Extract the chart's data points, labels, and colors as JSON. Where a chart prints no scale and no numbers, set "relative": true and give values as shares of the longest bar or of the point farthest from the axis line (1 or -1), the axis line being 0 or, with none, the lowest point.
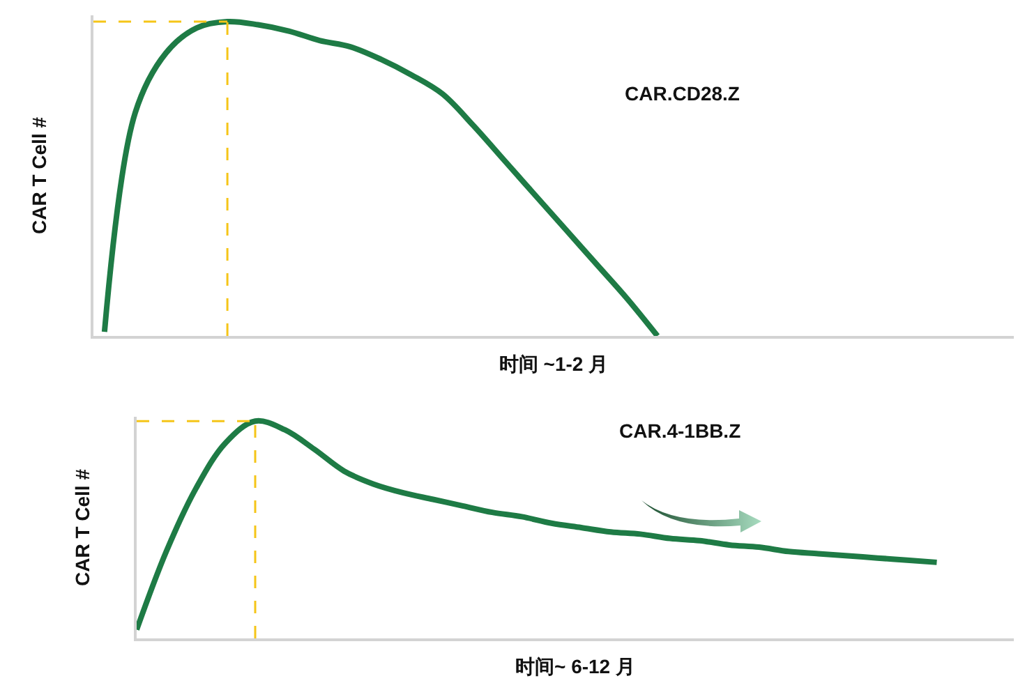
{
  "chart_data": [
    {
      "type": "line",
      "relative": true,
      "xlabel": "时间 ~1-2 月",
      "ylabel": "CAR T Cell #",
      "annotations": [
        "CAR.CD28.Z"
      ],
      "categories": [
        null,
        null,
        null,
        null,
        null,
        null,
        null,
        null,
        null,
        null,
        null,
        null,
        null,
        null,
        null,
        null,
        null,
        null,
        null,
        null,
        null,
        null,
        null,
        null,
        null,
        null,
        null,
        null,
        null,
        null
      ],
      "series": [
        {
          "color": "#1e7b45",
          "values": [
            0.013,
            0.71,
            0.9,
            0.98,
            1.0,
            0.99,
            0.97,
            0.94,
            0.92,
            0.88,
            0.83,
            0.77,
            0.67,
            0.56,
            0.45,
            0.34,
            0.23,
            0.12,
            0,
            null,
            null,
            null,
            null,
            null,
            null,
            null,
            null,
            null,
            null,
            null
          ]
        }
      ],
      "ref_lines": [
        {
          "axis": "y",
          "value": 1,
          "color": "#f5c518",
          "line_style": "dashed"
        }
      ],
      "grid": false
    },
    {
      "type": "line",
      "relative": true,
      "xlabel": "时间~ 6-12 月",
      "ylabel": "CAR T Cell #",
      "annotations": [
        "CAR.4-1BB.Z"
      ],
      "categories": [
        null,
        null,
        null,
        null,
        null,
        null,
        null,
        null,
        null,
        null,
        null,
        null,
        null,
        null,
        null,
        null,
        null,
        null,
        null,
        null,
        null,
        null,
        null,
        null,
        null,
        null,
        null,
        null,
        null,
        null
      ],
      "series": [
        {
          "color": "#1e7b45",
          "values": [
            0.04,
            0.4,
            0.69,
            0.9,
            1.0,
            0.96,
            0.87,
            0.77,
            0.71,
            0.67,
            0.64,
            0.61,
            0.58,
            0.56,
            0.53,
            0.51,
            0.49,
            0.48,
            0.46,
            0.45,
            0.43,
            0.42,
            0.4,
            0.39,
            0.38,
            0.37,
            0.36,
            0.35,
            null,
            null
          ]
        }
      ],
      "ref_lines": [
        {
          "axis": "y",
          "value": 1,
          "color": "#f5c518",
          "line_style": "dashed"
        }
      ],
      "grid": false
    }
  ]
}
